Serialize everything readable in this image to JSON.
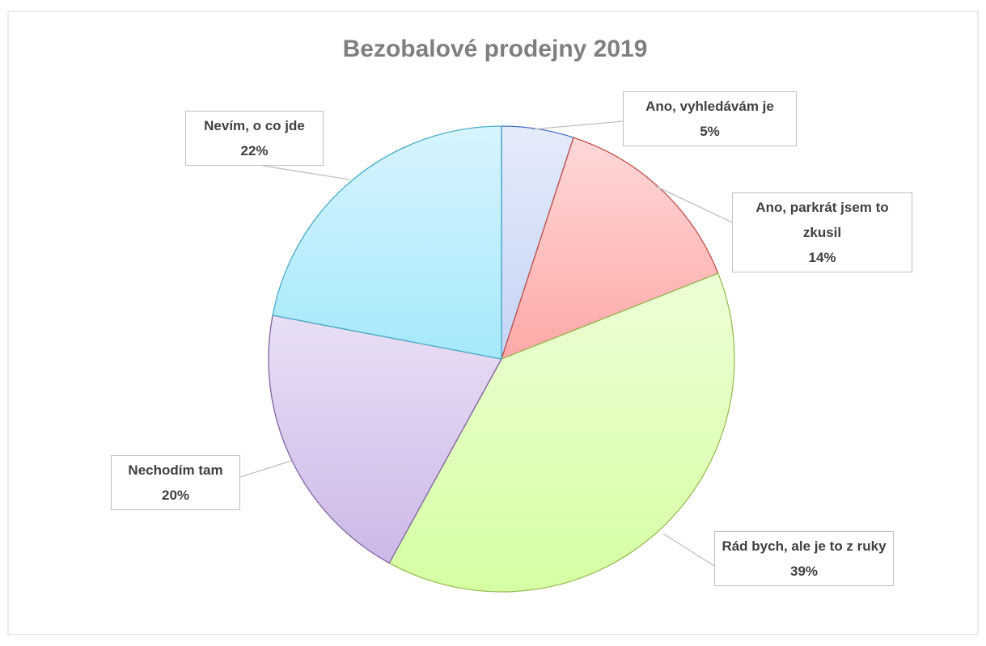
{
  "chart_data": {
    "type": "pie",
    "title": "Bezobalové prodejny 2019",
    "categories": [
      "Ano, vyhledávám je",
      "Ano, parkrát jsem to zkusil",
      "Rád bych, ale je to z ruky",
      "Nechodím tam",
      "Nevím, o co jde"
    ],
    "values": [
      5,
      14,
      39,
      20,
      22
    ],
    "value_labels": [
      "5%",
      "14%",
      "39%",
      "20%",
      "22%"
    ],
    "colors": [
      "#c4d4f5",
      "#ffa8a8",
      "#d6ffa3",
      "#cdb8e8",
      "#a6e8fc"
    ],
    "edge_colors": [
      "#4472c4",
      "#c0504d",
      "#9bbb59",
      "#8064a2",
      "#4bacc6"
    ]
  }
}
